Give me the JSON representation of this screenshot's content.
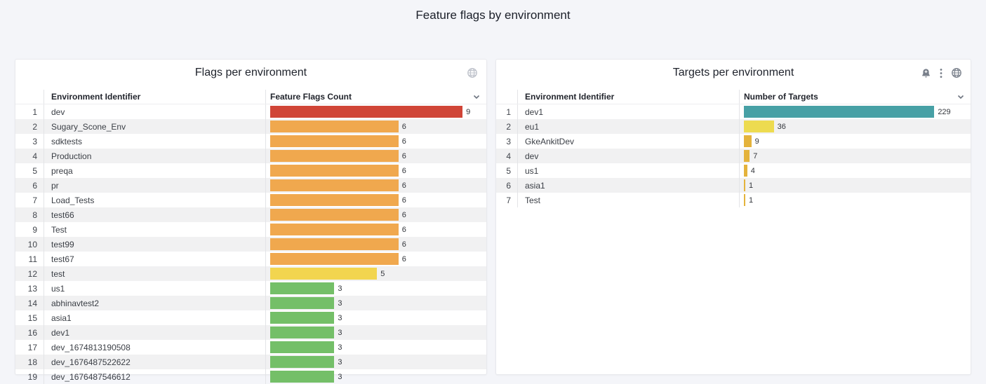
{
  "page": {
    "title": "Feature flags by environment",
    "background": "#f4f5f9"
  },
  "panels": [
    {
      "title": "Flags per environment",
      "header_icons": [
        "globe"
      ],
      "columns": {
        "identifier": "Environment Identifier",
        "value": "Feature Flags Count"
      },
      "max_value": 9,
      "rows": [
        {
          "n": "1",
          "id": "dev",
          "value": 9,
          "color": "#d04537"
        },
        {
          "n": "2",
          "id": "Sugary_Scone_Env",
          "value": 6,
          "color": "#f0a84e"
        },
        {
          "n": "3",
          "id": "sdktests",
          "value": 6,
          "color": "#f0a84e"
        },
        {
          "n": "4",
          "id": "Production",
          "value": 6,
          "color": "#f0a84e"
        },
        {
          "n": "5",
          "id": "preqa",
          "value": 6,
          "color": "#f0a84e"
        },
        {
          "n": "6",
          "id": "pr",
          "value": 6,
          "color": "#f0a84e"
        },
        {
          "n": "7",
          "id": "Load_Tests",
          "value": 6,
          "color": "#f0a84e"
        },
        {
          "n": "8",
          "id": "test66",
          "value": 6,
          "color": "#f0a84e"
        },
        {
          "n": "9",
          "id": "Test",
          "value": 6,
          "color": "#f0a84e"
        },
        {
          "n": "10",
          "id": "test99",
          "value": 6,
          "color": "#f0a84e"
        },
        {
          "n": "11",
          "id": "test67",
          "value": 6,
          "color": "#f0a84e"
        },
        {
          "n": "12",
          "id": "test",
          "value": 5,
          "color": "#f2d54f"
        },
        {
          "n": "13",
          "id": "us1",
          "value": 3,
          "color": "#74bf68"
        },
        {
          "n": "14",
          "id": "abhinavtest2",
          "value": 3,
          "color": "#74bf68"
        },
        {
          "n": "15",
          "id": "asia1",
          "value": 3,
          "color": "#74bf68"
        },
        {
          "n": "16",
          "id": "dev1",
          "value": 3,
          "color": "#74bf68"
        },
        {
          "n": "17",
          "id": "dev_1674813190508",
          "value": 3,
          "color": "#74bf68"
        },
        {
          "n": "18",
          "id": "dev_1676487522622",
          "value": 3,
          "color": "#74bf68"
        },
        {
          "n": "19",
          "id": "dev_1676487546612",
          "value": 3,
          "color": "#74bf68"
        }
      ]
    },
    {
      "title": "Targets per environment",
      "header_icons": [
        "alert-bell",
        "kebab-menu",
        "globe"
      ],
      "columns": {
        "identifier": "Environment Identifier",
        "value": "Number of Targets"
      },
      "max_value": 229,
      "rows": [
        {
          "n": "1",
          "id": "dev1",
          "value": 229,
          "color": "#47a0a5"
        },
        {
          "n": "2",
          "id": "eu1",
          "value": 36,
          "color": "#eddb50"
        },
        {
          "n": "3",
          "id": "GkeAnkitDev",
          "value": 9,
          "color": "#e4b33c"
        },
        {
          "n": "4",
          "id": "dev",
          "value": 7,
          "color": "#e4b33c"
        },
        {
          "n": "5",
          "id": "us1",
          "value": 4,
          "color": "#e4b33c"
        },
        {
          "n": "6",
          "id": "asia1",
          "value": 1,
          "color": "#e4b33c"
        },
        {
          "n": "7",
          "id": "Test",
          "value": 1,
          "color": "#e4b33c"
        }
      ]
    }
  ],
  "chart_data": [
    {
      "type": "bar",
      "orientation": "horizontal",
      "title": "Flags per environment",
      "categories": [
        "dev",
        "Sugary_Scone_Env",
        "sdktests",
        "Production",
        "preqa",
        "pr",
        "Load_Tests",
        "test66",
        "Test",
        "test99",
        "test67",
        "test",
        "us1",
        "abhinavtest2",
        "asia1",
        "dev1",
        "dev_1674813190508",
        "dev_1676487522622",
        "dev_1676487546612"
      ],
      "values": [
        9,
        6,
        6,
        6,
        6,
        6,
        6,
        6,
        6,
        6,
        6,
        5,
        3,
        3,
        3,
        3,
        3,
        3,
        3
      ],
      "xlabel": "Feature Flags Count",
      "ylabel": "Environment Identifier",
      "xlim": [
        0,
        9
      ],
      "legend": false,
      "grid": false
    },
    {
      "type": "bar",
      "orientation": "horizontal",
      "title": "Targets per environment",
      "categories": [
        "dev1",
        "eu1",
        "GkeAnkitDev",
        "dev",
        "us1",
        "asia1",
        "Test"
      ],
      "values": [
        229,
        36,
        9,
        7,
        4,
        1,
        1
      ],
      "xlabel": "Number of Targets",
      "ylabel": "Environment Identifier",
      "xlim": [
        0,
        229
      ],
      "legend": false,
      "grid": false
    }
  ]
}
